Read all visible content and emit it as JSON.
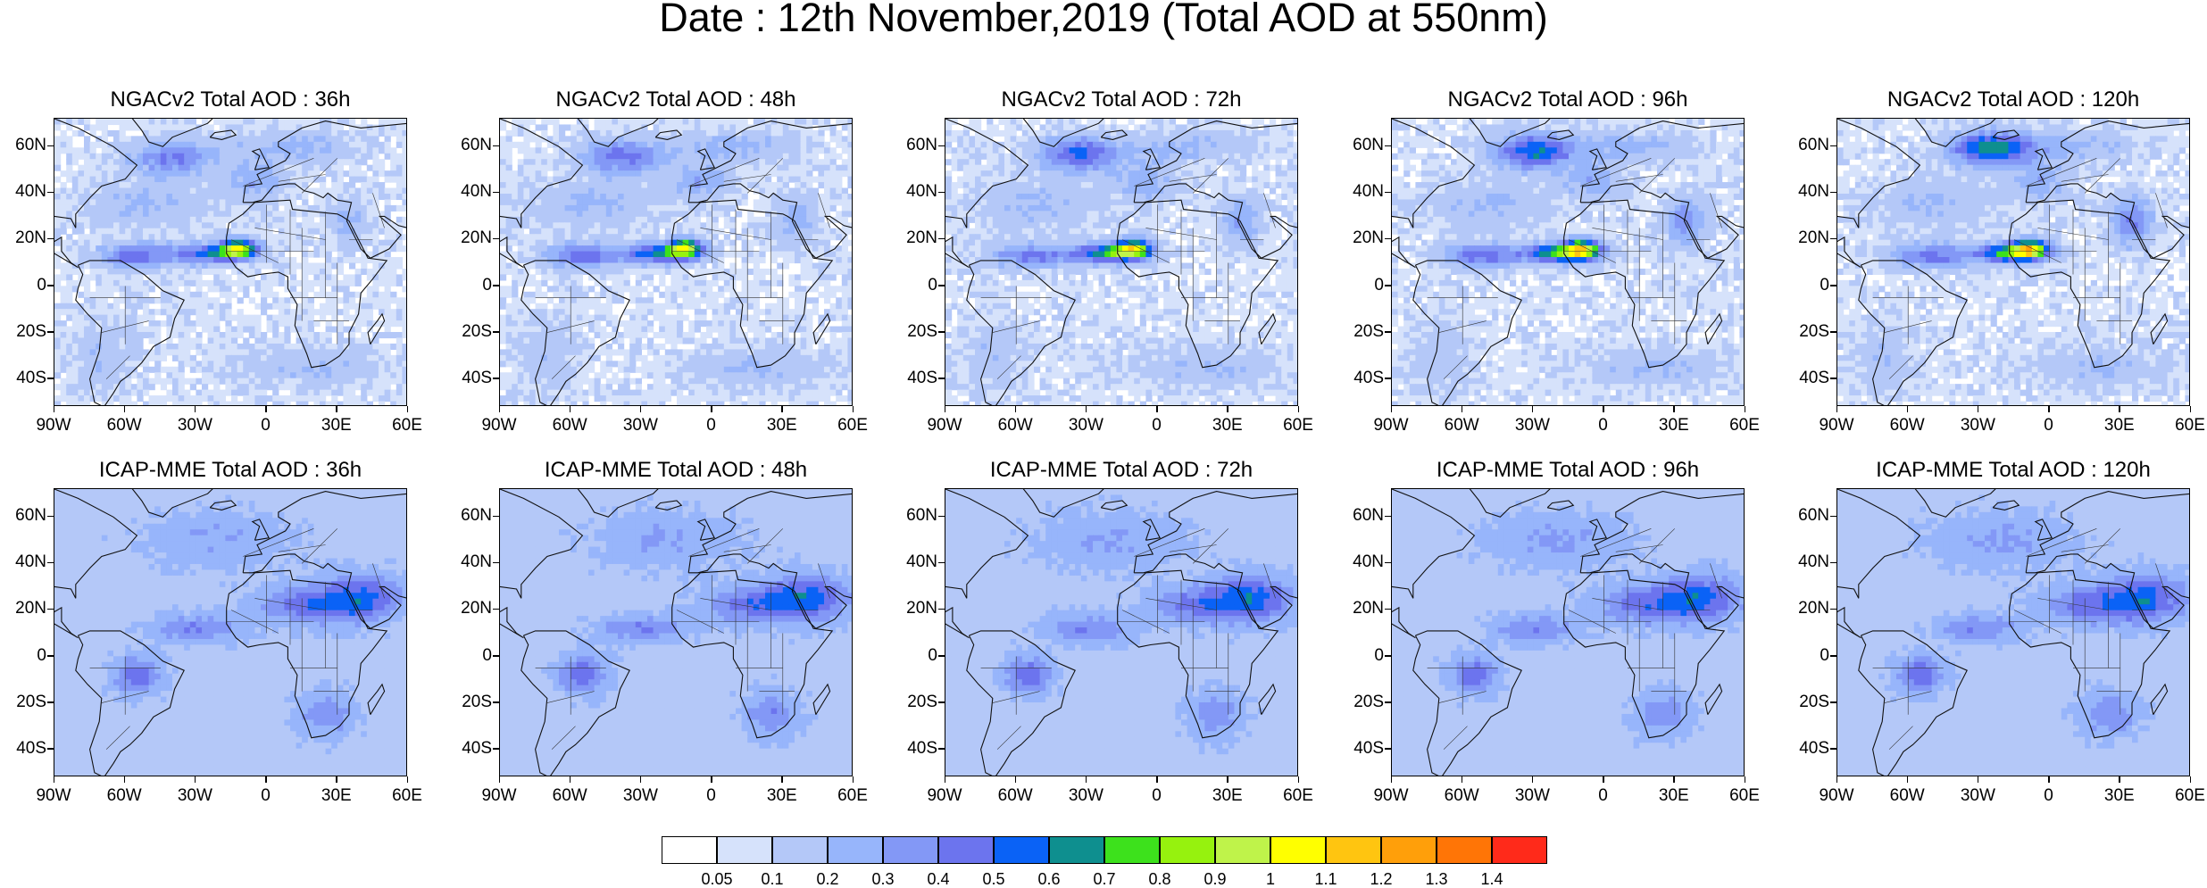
{
  "title": "Date : 12th November,2019 (Total AOD at 550nm)",
  "lat_labels": [
    "60N",
    "40N",
    "20N",
    "0",
    "20S",
    "40S"
  ],
  "lon_labels": [
    "90W",
    "60W",
    "30W",
    "0",
    "30E",
    "60E"
  ],
  "rows": [
    {
      "model": "NGACv2",
      "panels": [
        {
          "title": "NGACv2 Total AOD : 36h",
          "lead_hours": 36
        },
        {
          "title": "NGACv2 Total AOD : 48h",
          "lead_hours": 48
        },
        {
          "title": "NGACv2 Total AOD : 72h",
          "lead_hours": 72
        },
        {
          "title": "NGACv2 Total AOD : 96h",
          "lead_hours": 96
        },
        {
          "title": "NGACv2 Total AOD : 120h",
          "lead_hours": 120
        }
      ]
    },
    {
      "model": "ICAP-MME",
      "panels": [
        {
          "title": "ICAP-MME Total AOD : 36h",
          "lead_hours": 36
        },
        {
          "title": "ICAP-MME Total AOD : 48h",
          "lead_hours": 48
        },
        {
          "title": "ICAP-MME Total AOD : 72h",
          "lead_hours": 72
        },
        {
          "title": "ICAP-MME Total AOD : 96h",
          "lead_hours": 96
        },
        {
          "title": "ICAP-MME Total AOD : 120h",
          "lead_hours": 120
        }
      ]
    }
  ],
  "colorbar": {
    "labels": [
      "0.05",
      "0.1",
      "0.2",
      "0.3",
      "0.4",
      "0.5",
      "0.6",
      "0.7",
      "0.8",
      "0.9",
      "1",
      "1.1",
      "1.2",
      "1.3",
      "1.4"
    ],
    "colors": [
      "#ffffff",
      "#d6e2fb",
      "#b4c8f8",
      "#97b5fb",
      "#8398f6",
      "#6c74ee",
      "#0a62f6",
      "#0e8f8f",
      "#3de11c",
      "#96f20e",
      "#bff34a",
      "#ffff00",
      "#ffc510",
      "#ff9f0a",
      "#ff7506",
      "#ff2a1a"
    ]
  }
}
